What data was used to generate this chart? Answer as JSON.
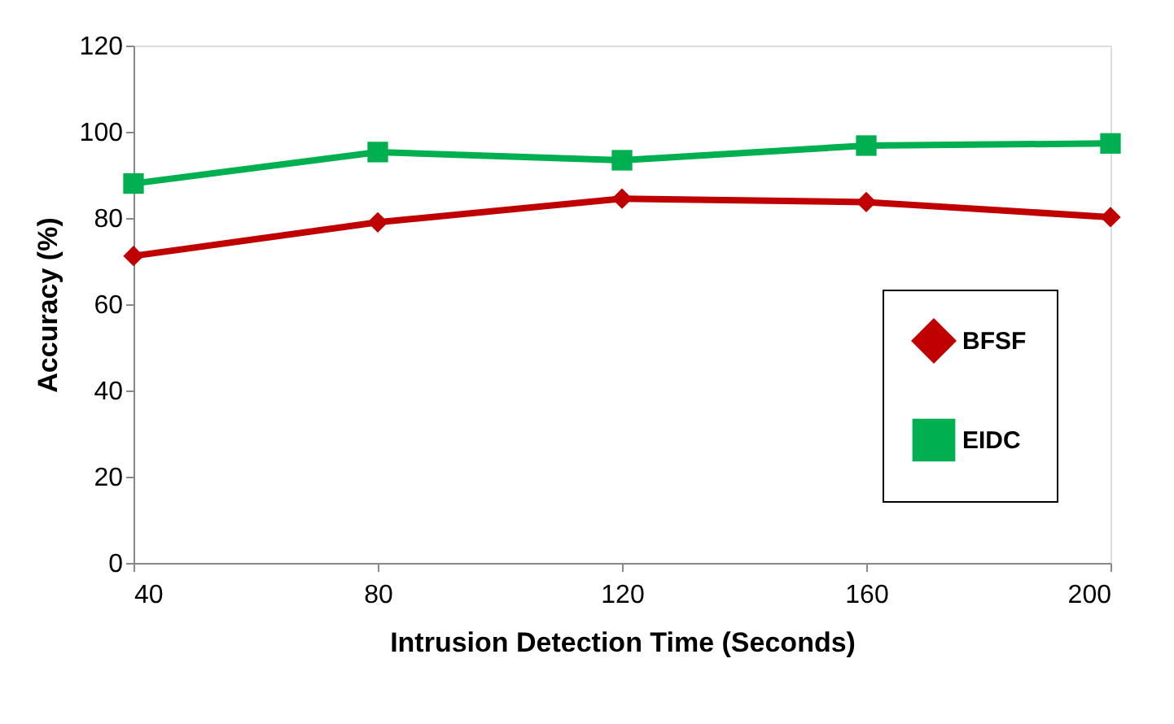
{
  "chart_data": {
    "type": "line",
    "xlabel": "Intrusion Detection Time (Seconds)",
    "ylabel": "Accuracy (%)",
    "x": [
      40,
      80,
      120,
      160,
      200
    ],
    "xlim": [
      40,
      200
    ],
    "xticks": [
      40,
      80,
      120,
      160,
      200
    ],
    "ylim": [
      0,
      120
    ],
    "yticks": [
      0,
      20,
      40,
      60,
      80,
      100,
      120
    ],
    "grid": false,
    "legend": "right",
    "series": [
      {
        "name": "BFSF",
        "color": "#c00000",
        "marker": "diamond",
        "values": [
          71.2,
          79.0,
          84.5,
          83.7,
          80.2
        ]
      },
      {
        "name": "EIDC",
        "color": "#00b050",
        "marker": "square",
        "values": [
          88.0,
          95.3,
          93.4,
          96.8,
          97.3
        ]
      }
    ]
  }
}
